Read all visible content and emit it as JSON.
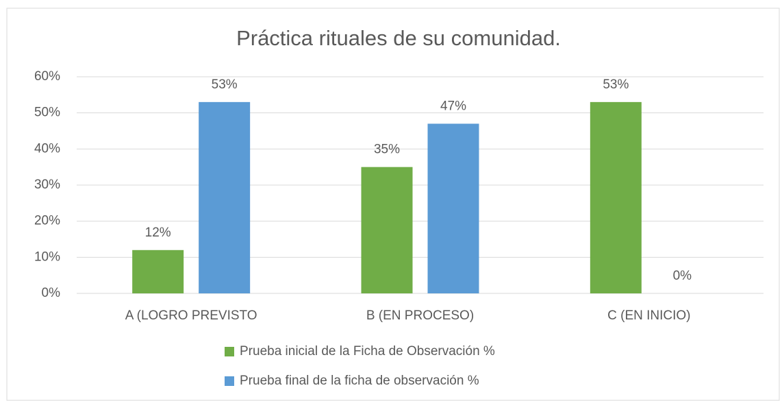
{
  "chart_data": {
    "type": "bar",
    "title": "Práctica rituales de su comunidad.",
    "categories": [
      "A (LOGRO PREVISTO",
      "B (EN PROCESO)",
      "C (EN INICIO)"
    ],
    "series": [
      {
        "name": "Prueba inicial de la Ficha de Observación %",
        "color": "#70ad47",
        "values": [
          12,
          35,
          53
        ],
        "value_labels": [
          "12%",
          "35%",
          "53%"
        ]
      },
      {
        "name": "Prueba final de la ficha de observación %",
        "color": "#5b9bd5",
        "values": [
          53,
          47,
          0
        ],
        "value_labels": [
          "53%",
          "47%",
          "0%"
        ]
      }
    ],
    "ylim": [
      0,
      60
    ],
    "yticks": [
      {
        "value": 0,
        "label": "0%"
      },
      {
        "value": 10,
        "label": "10%"
      },
      {
        "value": 20,
        "label": "20%"
      },
      {
        "value": 30,
        "label": "30%"
      },
      {
        "value": 40,
        "label": "40%"
      },
      {
        "value": 50,
        "label": "50%"
      },
      {
        "value": 60,
        "label": "60%"
      }
    ],
    "grid": true,
    "legend": "bottom"
  }
}
